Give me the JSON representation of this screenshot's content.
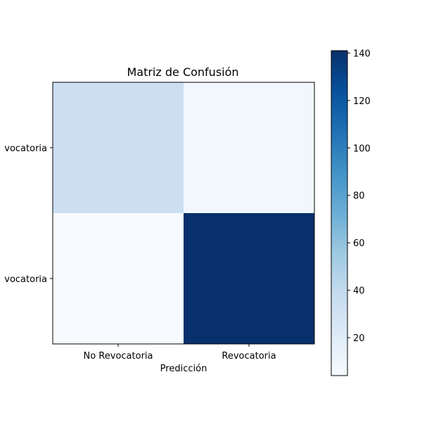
{
  "chart_data": {
    "type": "heatmap",
    "title": "Matriz de Confusión",
    "xlabel": "Predicción",
    "ylabel": "",
    "x_categories": [
      "No Revocatoria",
      "Revocatoria"
    ],
    "y_categories": [
      "No Revocatoria",
      "Revocatoria"
    ],
    "y_tick_labels_visible": [
      "vocatoria",
      "vocatoria"
    ],
    "matrix": [
      [
        34,
        8
      ],
      [
        4,
        141
      ]
    ],
    "colormap": "Blues",
    "colorbar": {
      "vmin": 4,
      "vmax": 141,
      "ticks": [
        20,
        40,
        60,
        80,
        100,
        120,
        140
      ],
      "tick_labels": [
        "20",
        "40",
        "60",
        "80",
        "100",
        "120",
        "140"
      ]
    },
    "grid": false,
    "annotations": false
  }
}
